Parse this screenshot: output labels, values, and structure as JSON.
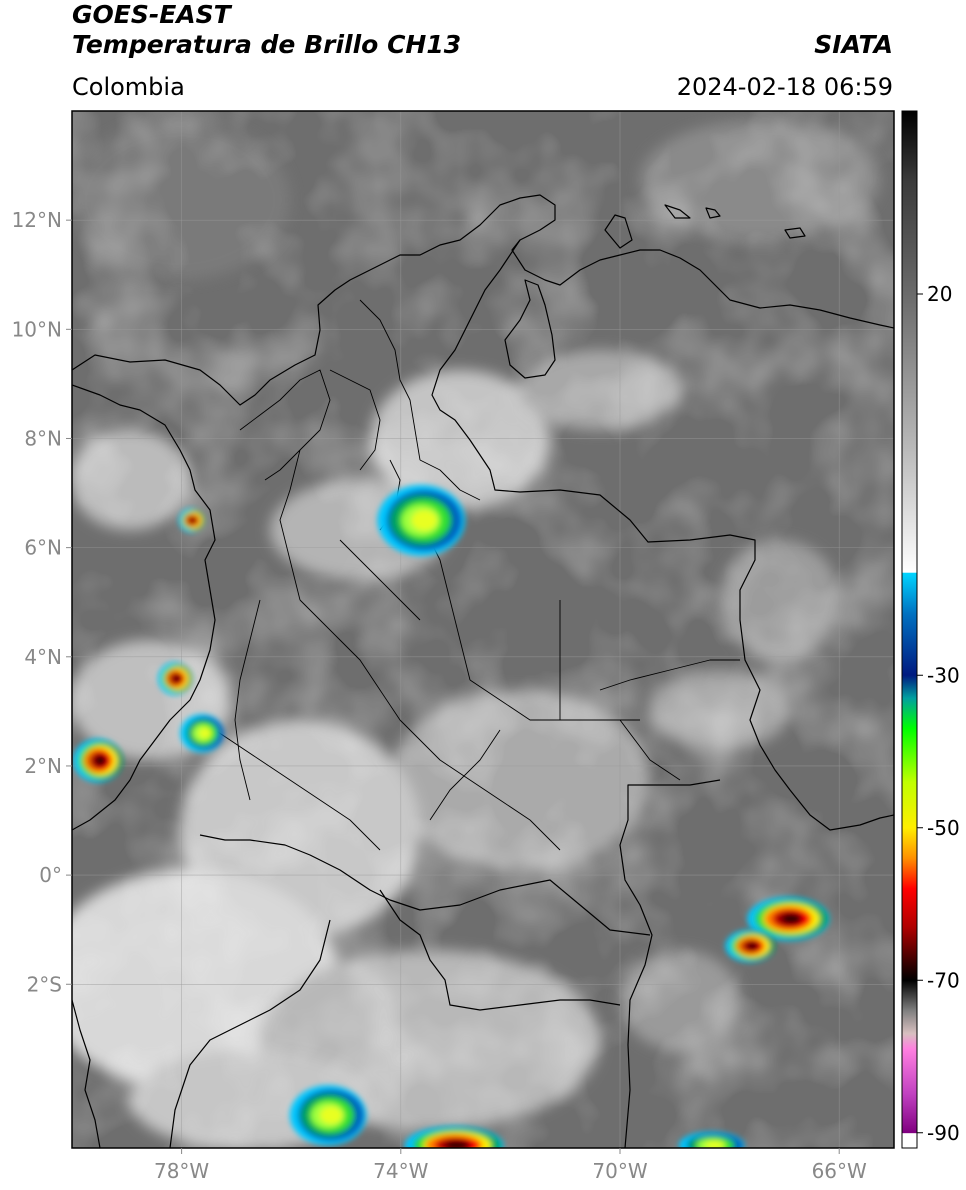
{
  "header": {
    "title_line1": "GOES-EAST",
    "title_line2": "Temperatura de Brillo CH13",
    "agency": "SIATA",
    "region": "Colombia",
    "datetime": "2024-02-18 06:59"
  },
  "map": {
    "lon_range": [
      -80,
      -65
    ],
    "lat_range": [
      -5,
      14
    ],
    "lat_ticks": [
      {
        "value": 12,
        "label": "12°N"
      },
      {
        "value": 10,
        "label": "10°N"
      },
      {
        "value": 8,
        "label": "8°N"
      },
      {
        "value": 6,
        "label": "6°N"
      },
      {
        "value": 4,
        "label": "4°N"
      },
      {
        "value": 2,
        "label": "2°N"
      },
      {
        "value": 0,
        "label": "0°"
      },
      {
        "value": -2,
        "label": "2°S"
      }
    ],
    "lon_ticks": [
      {
        "value": -78,
        "label": "78°W"
      },
      {
        "value": -74,
        "label": "74°W"
      },
      {
        "value": -70,
        "label": "70°W"
      },
      {
        "value": -66,
        "label": "66°W"
      }
    ],
    "gridlines": true,
    "colors": {
      "background_gray": "#6e6e6e",
      "border": "#000000",
      "grid": "#9a9a9a"
    }
  },
  "colorbar": {
    "range": [
      -92,
      44
    ],
    "ticks": [
      {
        "value": 20,
        "label": "20"
      },
      {
        "value": -30,
        "label": "-30"
      },
      {
        "value": -50,
        "label": "-50"
      },
      {
        "value": -70,
        "label": "-70"
      },
      {
        "value": -90,
        "label": "-90"
      }
    ],
    "stops": [
      {
        "value": 44,
        "color": "#000000"
      },
      {
        "value": 35,
        "color": "#3a3a3a"
      },
      {
        "value": 20,
        "color": "#6a6a6a"
      },
      {
        "value": 0,
        "color": "#b8b8b8"
      },
      {
        "value": -16.5,
        "color": "#ffffff"
      },
      {
        "value": -16.6,
        "color": "#00d4ff"
      },
      {
        "value": -22,
        "color": "#0070c0"
      },
      {
        "value": -30,
        "color": "#001a80"
      },
      {
        "value": -33,
        "color": "#00a0a0"
      },
      {
        "value": -37,
        "color": "#00ff00"
      },
      {
        "value": -44,
        "color": "#c0ff00"
      },
      {
        "value": -50,
        "color": "#ffee00"
      },
      {
        "value": -54,
        "color": "#ff9000"
      },
      {
        "value": -58,
        "color": "#ff0000"
      },
      {
        "value": -63,
        "color": "#b00000"
      },
      {
        "value": -68,
        "color": "#300000"
      },
      {
        "value": -70,
        "color": "#000000"
      },
      {
        "value": -74,
        "color": "#808080"
      },
      {
        "value": -77,
        "color": "#d8c0c0"
      },
      {
        "value": -79,
        "color": "#ff80e0"
      },
      {
        "value": -85,
        "color": "#c040c0"
      },
      {
        "value": -90,
        "color": "#800080"
      },
      {
        "value": -90.1,
        "color": "#ffffff"
      },
      {
        "value": -92,
        "color": "#ffffff"
      }
    ]
  },
  "storms": [
    {
      "name": "storm-antioquia",
      "lon": -73.6,
      "lat": 6.5,
      "r_lon": 0.8,
      "r_lat": 0.65,
      "core": "green"
    },
    {
      "name": "storm-choco-coast",
      "lon": -77.8,
      "lat": 6.5,
      "r_lon": 0.22,
      "r_lat": 0.22,
      "core": "red"
    },
    {
      "name": "storm-pacific-north",
      "lon": -78.1,
      "lat": 3.6,
      "r_lon": 0.3,
      "r_lat": 0.3,
      "core": "red"
    },
    {
      "name": "storm-pacific-south",
      "lon": -79.5,
      "lat": 2.1,
      "r_lon": 0.45,
      "r_lat": 0.4,
      "core": "red"
    },
    {
      "name": "storm-pacific-mid",
      "lon": -77.6,
      "lat": 2.6,
      "r_lon": 0.4,
      "r_lat": 0.35,
      "core": "green"
    },
    {
      "name": "storm-amazon-east",
      "lon": -66.9,
      "lat": -0.8,
      "r_lon": 0.75,
      "r_lat": 0.4,
      "core": "red"
    },
    {
      "name": "storm-amazon-east-tail",
      "lon": -67.6,
      "lat": -1.3,
      "r_lon": 0.45,
      "r_lat": 0.3,
      "core": "red"
    },
    {
      "name": "storm-peru-north",
      "lon": -75.3,
      "lat": -4.4,
      "r_lon": 0.7,
      "r_lat": 0.55,
      "core": "green"
    },
    {
      "name": "storm-peru-central",
      "lon": -73.0,
      "lat": -4.95,
      "r_lon": 0.9,
      "r_lat": 0.35,
      "core": "red"
    },
    {
      "name": "storm-amazon-south",
      "lon": -68.3,
      "lat": -4.95,
      "r_lon": 0.6,
      "r_lat": 0.25,
      "core": "green"
    }
  ]
}
